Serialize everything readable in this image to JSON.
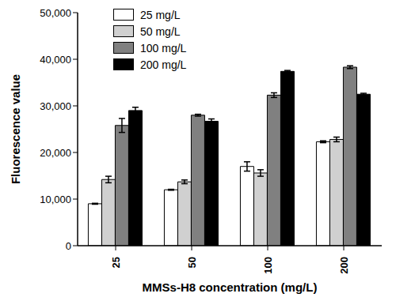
{
  "chart_data": {
    "type": "bar",
    "x_label": "MMSs-H8 concentration (mg/L)",
    "y_label": "Fluorescence value",
    "categories": [
      "25",
      "50",
      "100",
      "200"
    ],
    "series": [
      {
        "name": "25 mg/L",
        "color": "#ffffff",
        "values": [
          9000,
          12000,
          17000,
          22300
        ],
        "errors": [
          100,
          100,
          1000,
          200
        ]
      },
      {
        "name": "50 mg/L",
        "color": "#d0d0d0",
        "values": [
          14200,
          13700,
          15600,
          22800
        ],
        "errors": [
          700,
          400,
          700,
          500
        ]
      },
      {
        "name": "100 mg/L",
        "color": "#808080",
        "values": [
          25800,
          28000,
          32300,
          38300
        ],
        "errors": [
          1500,
          200,
          500,
          300
        ]
      },
      {
        "name": "200 mg/L",
        "color": "#000000",
        "values": [
          29000,
          26700,
          37400,
          32500
        ],
        "errors": [
          700,
          500,
          200,
          200
        ]
      }
    ],
    "ylim": [
      0,
      50000
    ],
    "yticks": [
      0,
      {
        "value": 10000,
        "label": "10,000"
      },
      {
        "value": 20000,
        "label": "20,000"
      },
      {
        "value": 30000,
        "label": "30,000"
      },
      {
        "value": 40000,
        "label": "40,000"
      },
      {
        "value": 50000,
        "label": "50,000"
      }
    ],
    "grid": false,
    "legend": "upper left"
  }
}
